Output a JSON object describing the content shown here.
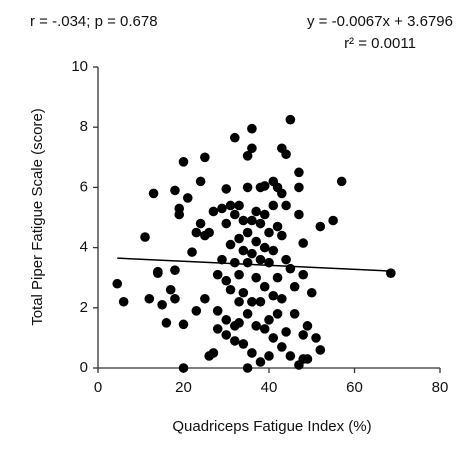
{
  "chart_data": {
    "type": "scatter",
    "annotations": [
      "r = -.034; p = 0.678",
      "y = -0.0067x + 3.6796",
      "r² = 0.0011"
    ],
    "x_label": "Quadriceps Fatigue Index (%)",
    "y_label": "Total Piper Fatigue Scale (score)",
    "xlim": [
      0,
      80
    ],
    "xticks": [
      0,
      20,
      40,
      60,
      80
    ],
    "ylim": [
      0,
      10
    ],
    "yticks": [
      0,
      2,
      4,
      6,
      8,
      10
    ],
    "color": "#000000",
    "x": [
      4.5,
      6,
      11,
      12,
      13,
      14,
      15,
      16,
      17,
      18,
      18,
      18,
      19,
      19,
      20,
      20,
      20,
      21,
      22,
      23,
      23,
      24,
      24,
      25,
      25,
      25,
      26,
      26,
      27,
      27,
      28,
      28,
      28,
      29,
      29,
      30,
      30,
      30,
      30,
      30,
      31,
      31,
      31,
      32,
      32,
      32,
      32,
      32,
      33,
      33,
      33,
      33,
      33,
      34,
      34,
      34,
      34,
      35,
      35,
      35,
      35,
      35,
      35,
      36,
      36,
      36,
      36,
      36,
      36,
      37,
      37,
      37,
      37,
      38,
      38,
      38,
      38,
      38,
      39,
      39,
      39,
      39,
      39,
      40,
      40,
      40,
      40,
      41,
      41,
      41,
      41,
      41,
      42,
      42,
      42,
      42,
      43,
      43,
      43,
      43,
      43,
      44,
      44,
      44,
      44,
      45,
      45,
      45,
      46,
      46,
      47,
      47,
      47,
      48,
      48,
      48,
      49,
      49,
      50,
      51,
      52,
      52,
      55,
      57,
      68.5,
      47,
      48,
      14
    ],
    "values": [
      2.8,
      2.2,
      4.35,
      2.3,
      5.8,
      3.15,
      2.1,
      1.5,
      2.6,
      5.9,
      3.25,
      2.3,
      5.3,
      5.1,
      1.45,
      6.85,
      0,
      5.65,
      3.85,
      1.9,
      4.5,
      4.8,
      6.2,
      7,
      4.4,
      2.3,
      0.4,
      4.5,
      0.5,
      5.2,
      1.3,
      3.1,
      1.9,
      5.3,
      3.6,
      5.95,
      4.8,
      2.9,
      1.6,
      1.1,
      4.1,
      5.4,
      2.6,
      7.65,
      5.1,
      3.5,
      1.4,
      0.9,
      5.4,
      4.3,
      3.1,
      2.2,
      1.5,
      4.9,
      3.9,
      2.5,
      0.8,
      7.05,
      6.0,
      4.5,
      3.5,
      1.8,
      0,
      7.95,
      7.3,
      4.9,
      3.8,
      2.2,
      0.5,
      5.2,
      4.2,
      3.0,
      1.4,
      6.0,
      4.8,
      3.6,
      2.2,
      0.2,
      6.05,
      5.1,
      4.0,
      2.7,
      1.3,
      4.5,
      3.5,
      1.6,
      0.4,
      6.2,
      5.4,
      3.9,
      2.4,
      1.0,
      6.0,
      4.7,
      3.0,
      1.8,
      7.3,
      5.8,
      4.4,
      2.3,
      0.7,
      7.1,
      5.4,
      3.6,
      1.2,
      8.25,
      3.3,
      0.4,
      2.7,
      1.8,
      6.5,
      6.0,
      5.1,
      4.15,
      3.1,
      1.1,
      0.3,
      1.4,
      2.5,
      1.0,
      4.7,
      0.6,
      4.9,
      6.2,
      3.15,
      0.1,
      0.3,
      3.2
    ],
    "trendline": {
      "x": [
        4.5,
        68.5
      ],
      "values": [
        3.65,
        3.22
      ]
    }
  }
}
